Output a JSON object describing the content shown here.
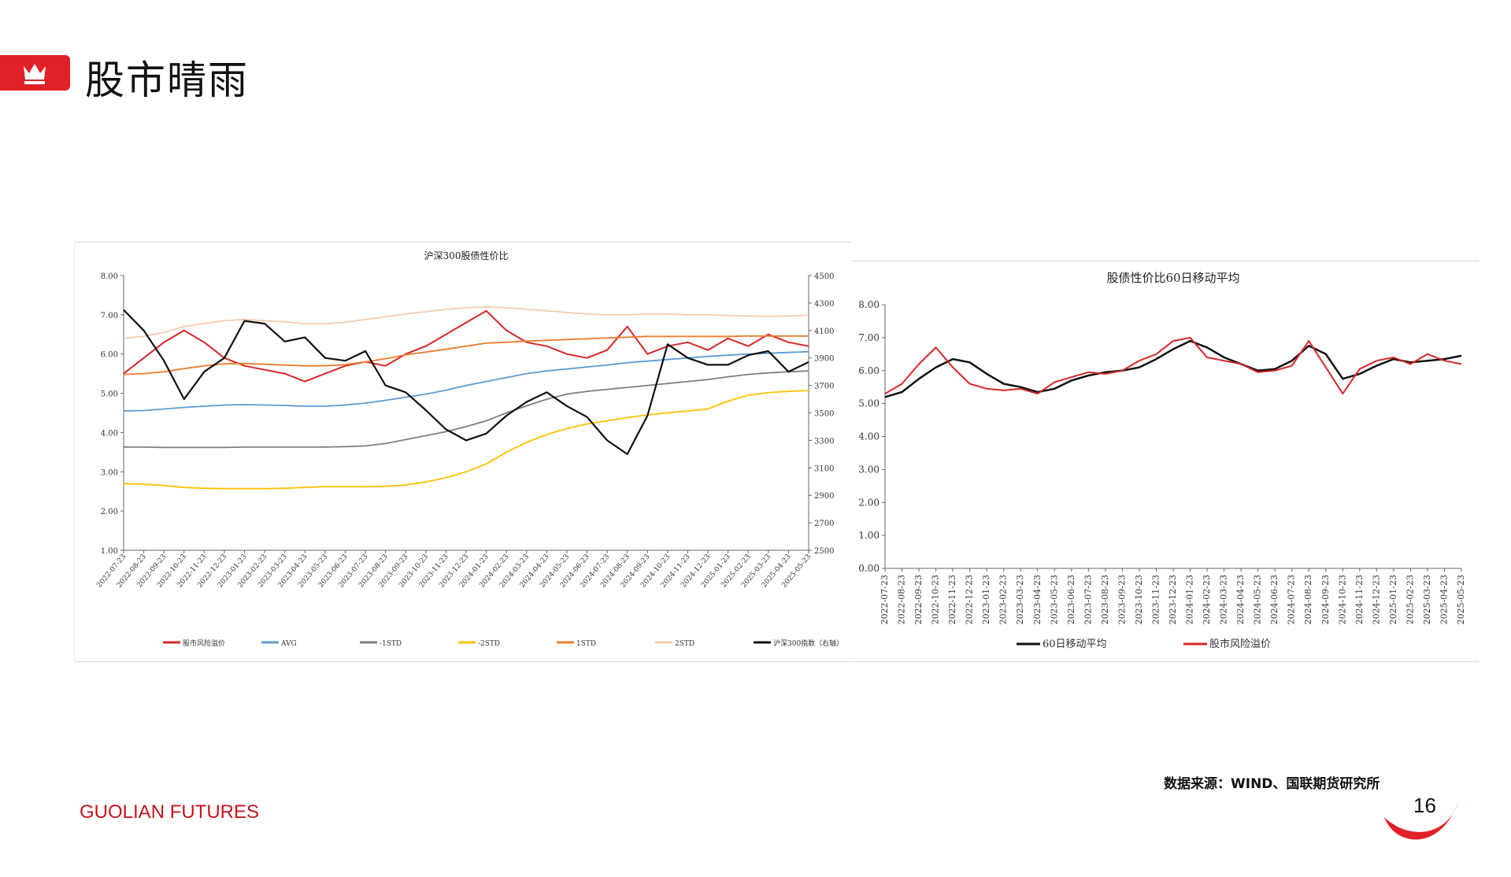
{
  "header": {
    "title": "股市晴雨",
    "accent_color": "#e02127",
    "icon": "crown-icon"
  },
  "footer": {
    "source": "数据来源：WIND、国联期货研究所",
    "brand": "GUOLIAN FUTURES",
    "page_number": "16"
  },
  "chart_data": [
    {
      "type": "line",
      "title": "沪深300股债性价比",
      "x": [
        "2022-07-23",
        "2022-08-23",
        "2022-09-23",
        "2022-10-23",
        "2022-11-23",
        "2022-12-23",
        "2023-01-23",
        "2023-02-23",
        "2023-03-23",
        "2023-04-23",
        "2023-05-23",
        "2023-06-23",
        "2023-07-23",
        "2023-08-23",
        "2023-09-23",
        "2023-10-23",
        "2023-11-23",
        "2023-12-23",
        "2024-01-23",
        "2024-02-23",
        "2024-03-23",
        "2024-04-23",
        "2024-05-23",
        "2024-06-23",
        "2024-07-23",
        "2024-08-23",
        "2024-09-23",
        "2024-10-23",
        "2024-11-23",
        "2024-12-23",
        "2025-01-23",
        "2025-02-23",
        "2025-03-23",
        "2025-04-23",
        "2025-05-23"
      ],
      "ylim": [
        1.0,
        8.0
      ],
      "yticks": [
        "1.00",
        "2.00",
        "3.00",
        "4.00",
        "5.00",
        "6.00",
        "7.00",
        "8.00"
      ],
      "y2lim": [
        2500,
        4500
      ],
      "y2ticks": [
        "2500",
        "2700",
        "2900",
        "3100",
        "3300",
        "3500",
        "3700",
        "3900",
        "4100",
        "4300",
        "4500"
      ],
      "legend_position": "bottom",
      "series": [
        {
          "name": "股市风险溢价",
          "axis": "left",
          "color": "#d62728",
          "values": [
            5.5,
            5.9,
            6.3,
            6.6,
            6.3,
            5.9,
            5.7,
            5.6,
            5.5,
            5.3,
            5.5,
            5.7,
            5.8,
            5.7,
            6.0,
            6.2,
            6.5,
            6.8,
            7.1,
            6.6,
            6.3,
            6.2,
            6.0,
            5.9,
            6.1,
            6.7,
            6.0,
            6.2,
            6.3,
            6.1,
            6.4,
            6.2,
            6.5,
            6.3,
            6.2
          ]
        },
        {
          "name": "AVG",
          "axis": "left",
          "color": "#5b9bd5",
          "values": [
            4.55,
            4.56,
            4.6,
            4.64,
            4.67,
            4.7,
            4.71,
            4.7,
            4.69,
            4.67,
            4.67,
            4.7,
            4.75,
            4.82,
            4.9,
            4.98,
            5.08,
            5.2,
            5.3,
            5.4,
            5.5,
            5.57,
            5.62,
            5.67,
            5.72,
            5.78,
            5.82,
            5.86,
            5.9,
            5.94,
            5.97,
            6.0,
            6.02,
            6.04,
            6.06
          ]
        },
        {
          "name": "-1STD",
          "axis": "left",
          "color": "#7f7f7f",
          "values": [
            3.63,
            3.63,
            3.62,
            3.62,
            3.62,
            3.62,
            3.63,
            3.63,
            3.63,
            3.63,
            3.63,
            3.64,
            3.66,
            3.72,
            3.82,
            3.92,
            4.02,
            4.15,
            4.3,
            4.5,
            4.68,
            4.85,
            4.98,
            5.05,
            5.1,
            5.15,
            5.2,
            5.25,
            5.3,
            5.35,
            5.42,
            5.48,
            5.52,
            5.55,
            5.57
          ]
        },
        {
          "name": "-2STD",
          "axis": "left",
          "color": "#ffc000",
          "values": [
            2.7,
            2.68,
            2.65,
            2.6,
            2.58,
            2.57,
            2.57,
            2.57,
            2.58,
            2.6,
            2.62,
            2.62,
            2.62,
            2.63,
            2.66,
            2.74,
            2.85,
            3.0,
            3.2,
            3.5,
            3.75,
            3.95,
            4.1,
            4.22,
            4.3,
            4.38,
            4.45,
            4.5,
            4.55,
            4.6,
            4.8,
            4.95,
            5.02,
            5.05,
            5.07
          ]
        },
        {
          "name": "1STD",
          "axis": "left",
          "color": "#ed7d31",
          "values": [
            5.48,
            5.5,
            5.55,
            5.63,
            5.7,
            5.75,
            5.76,
            5.74,
            5.72,
            5.7,
            5.7,
            5.73,
            5.8,
            5.88,
            5.98,
            6.05,
            6.12,
            6.2,
            6.28,
            6.3,
            6.33,
            6.35,
            6.37,
            6.39,
            6.41,
            6.43,
            6.45,
            6.45,
            6.45,
            6.45,
            6.45,
            6.46,
            6.46,
            6.46,
            6.46
          ]
        },
        {
          "name": "2STD",
          "axis": "left",
          "color": "#f8cbad",
          "values": [
            6.4,
            6.45,
            6.55,
            6.7,
            6.78,
            6.85,
            6.88,
            6.85,
            6.82,
            6.77,
            6.77,
            6.81,
            6.88,
            6.95,
            7.02,
            7.08,
            7.14,
            7.18,
            7.2,
            7.18,
            7.14,
            7.1,
            7.06,
            7.02,
            7.0,
            7.0,
            7.02,
            7.02,
            7.0,
            7.0,
            6.98,
            6.97,
            6.96,
            6.97,
            6.99
          ]
        },
        {
          "name": "沪深300指数（右轴）",
          "axis": "right",
          "color": "#111111",
          "values": [
            4250,
            4100,
            3880,
            3600,
            3800,
            3900,
            4170,
            4150,
            4020,
            4050,
            3900,
            3880,
            3950,
            3700,
            3650,
            3520,
            3380,
            3300,
            3350,
            3480,
            3580,
            3650,
            3550,
            3470,
            3300,
            3200,
            3480,
            4000,
            3900,
            3850,
            3850,
            3920,
            3950,
            3800,
            3870
          ]
        }
      ]
    },
    {
      "type": "line",
      "title": "股债性价比60日移动平均",
      "x": [
        "2022-07-23",
        "2022-08-23",
        "2022-09-23",
        "2022-10-23",
        "2022-11-23",
        "2022-12-23",
        "2023-01-23",
        "2023-02-23",
        "2023-03-23",
        "2023-04-23",
        "2023-05-23",
        "2023-06-23",
        "2023-07-23",
        "2023-08-23",
        "2023-09-23",
        "2023-10-23",
        "2023-11-23",
        "2023-12-23",
        "2024-01-23",
        "2024-02-23",
        "2024-03-23",
        "2024-04-23",
        "2024-05-23",
        "2024-06-23",
        "2024-07-23",
        "2024-08-23",
        "2024-09-23",
        "2024-10-23",
        "2024-11-23",
        "2024-12-23",
        "2025-01-23",
        "2025-02-23",
        "2025-03-23",
        "2025-04-23",
        "2025-05-23"
      ],
      "ylim": [
        0.0,
        8.0
      ],
      "yticks": [
        "0.00",
        "1.00",
        "2.00",
        "3.00",
        "4.00",
        "5.00",
        "6.00",
        "7.00",
        "8.00"
      ],
      "legend_position": "bottom",
      "series": [
        {
          "name": "60日移动平均",
          "color": "#111111",
          "values": [
            5.2,
            5.35,
            5.75,
            6.1,
            6.35,
            6.25,
            5.9,
            5.6,
            5.5,
            5.35,
            5.45,
            5.7,
            5.85,
            5.95,
            6.0,
            6.1,
            6.35,
            6.65,
            6.9,
            6.7,
            6.4,
            6.2,
            6.0,
            6.05,
            6.3,
            6.75,
            6.5,
            5.75,
            5.9,
            6.15,
            6.35,
            6.25,
            6.3,
            6.35,
            6.45
          ]
        },
        {
          "name": "股市风险溢价",
          "color": "#d62728",
          "values": [
            5.3,
            5.6,
            6.2,
            6.7,
            6.1,
            5.6,
            5.45,
            5.4,
            5.45,
            5.3,
            5.65,
            5.8,
            5.95,
            5.9,
            6.0,
            6.3,
            6.5,
            6.9,
            7.0,
            6.4,
            6.3,
            6.2,
            5.95,
            6.0,
            6.15,
            6.9,
            6.1,
            5.3,
            6.05,
            6.3,
            6.4,
            6.2,
            6.5,
            6.3,
            6.2
          ]
        }
      ]
    }
  ]
}
